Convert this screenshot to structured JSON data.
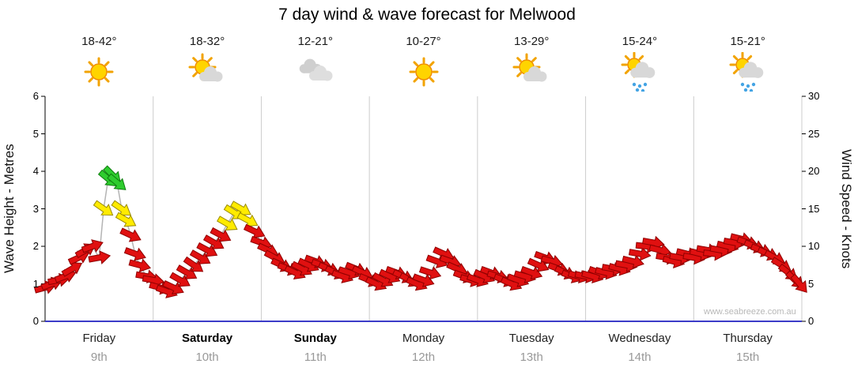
{
  "title": "7 day wind & wave forecast for Melwood",
  "watermark": "www.seabreeze.com.au",
  "axes": {
    "left_label": "Wave Height - Metres",
    "right_label": "Wind Speed - Knots"
  },
  "days": [
    {
      "name": "Friday",
      "date": "9th",
      "temp": "18-42°",
      "icon": "sunny",
      "bold": false
    },
    {
      "name": "Saturday",
      "date": "10th",
      "temp": "18-32°",
      "icon": "partly-cloudy",
      "bold": true
    },
    {
      "name": "Sunday",
      "date": "11th",
      "temp": "12-21°",
      "icon": "cloudy",
      "bold": true
    },
    {
      "name": "Monday",
      "date": "12th",
      "temp": "10-27°",
      "icon": "sunny",
      "bold": false
    },
    {
      "name": "Tuesday",
      "date": "13th",
      "temp": "13-29°",
      "icon": "partly-cloudy",
      "bold": false
    },
    {
      "name": "Wednesday",
      "date": "14th",
      "temp": "15-24°",
      "icon": "rain",
      "bold": false
    },
    {
      "name": "Thursday",
      "date": "15th",
      "temp": "15-21°",
      "icon": "rain",
      "bold": false
    }
  ],
  "chart_data": {
    "type": "scatter",
    "title": "7 day wind & wave forecast for Melwood",
    "x_axis": {
      "categories": [
        "Friday",
        "Saturday",
        "Sunday",
        "Monday",
        "Tuesday",
        "Wednesday",
        "Thursday"
      ],
      "unit": "hours",
      "range": [
        0,
        168
      ]
    },
    "left_axis": {
      "label": "Wave Height - Metres",
      "range": [
        0,
        6
      ],
      "ticks": [
        0,
        1,
        2,
        3,
        4,
        5,
        6
      ]
    },
    "right_axis": {
      "label": "Wind Speed - Knots",
      "range": [
        0,
        30
      ],
      "ticks": [
        0,
        5,
        10,
        15,
        20,
        25,
        30
      ]
    },
    "grid": "vertical-day-boundaries",
    "legend": "none",
    "arrow_colors": {
      "r": "#e01010",
      "y": "#ffeb00",
      "g": "#2ecc2e"
    },
    "arrow_stroke_colors": {
      "r": "#8f0000",
      "y": "#9a8b00",
      "g": "#0f7d0f"
    },
    "wave_line_color": "#b4b4b4",
    "axis_color_bottom": "#3c3cc8",
    "wind_points": [
      [
        0,
        4.5,
        -15,
        "r"
      ],
      [
        1.5,
        5,
        -20,
        "r"
      ],
      [
        3,
        5.5,
        -10,
        "r"
      ],
      [
        4.5,
        6,
        -20,
        "r"
      ],
      [
        6,
        7,
        -30,
        "r"
      ],
      [
        7.5,
        8.5,
        -25,
        "r"
      ],
      [
        9,
        9.5,
        -30,
        "r"
      ],
      [
        10.5,
        10,
        -20,
        "r"
      ],
      [
        12,
        8.5,
        -10,
        "r"
      ],
      [
        13,
        15,
        35,
        "y"
      ],
      [
        14,
        19,
        40,
        "g"
      ],
      [
        15,
        19.5,
        45,
        "g"
      ],
      [
        16,
        18.5,
        40,
        "g"
      ],
      [
        17,
        15,
        35,
        "y"
      ],
      [
        18,
        13.5,
        30,
        "y"
      ],
      [
        19,
        11.5,
        25,
        "r"
      ],
      [
        20,
        9,
        20,
        "r"
      ],
      [
        21,
        7.5,
        15,
        "r"
      ],
      [
        22.5,
        6,
        10,
        "r"
      ],
      [
        24,
        5.5,
        10,
        "r"
      ],
      [
        25.5,
        4.5,
        15,
        "r"
      ],
      [
        27,
        4,
        20,
        "r"
      ],
      [
        28.5,
        4.5,
        25,
        "r"
      ],
      [
        30,
        5.5,
        30,
        "r"
      ],
      [
        31.5,
        6.5,
        30,
        "r"
      ],
      [
        33,
        7.5,
        35,
        "r"
      ],
      [
        34.5,
        8.5,
        30,
        "r"
      ],
      [
        36,
        9.5,
        28,
        "r"
      ],
      [
        37.5,
        10.5,
        30,
        "r"
      ],
      [
        39,
        11.5,
        28,
        "r"
      ],
      [
        40.5,
        13,
        30,
        "y"
      ],
      [
        42,
        14.5,
        32,
        "y"
      ],
      [
        43.5,
        15,
        30,
        "y"
      ],
      [
        45,
        13.5,
        28,
        "y"
      ],
      [
        46.5,
        12,
        25,
        "r"
      ],
      [
        48,
        10.5,
        20,
        "r"
      ],
      [
        49.5,
        9.5,
        25,
        "r"
      ],
      [
        51,
        8.5,
        28,
        "r"
      ],
      [
        52.5,
        7.5,
        25,
        "r"
      ],
      [
        54,
        7,
        20,
        "r"
      ],
      [
        55.5,
        6.5,
        25,
        "r"
      ],
      [
        57,
        7,
        28,
        "r"
      ],
      [
        58.5,
        7.5,
        25,
        "r"
      ],
      [
        60,
        8,
        20,
        "r"
      ],
      [
        61.5,
        7.5,
        18,
        "r"
      ],
      [
        63,
        7,
        22,
        "r"
      ],
      [
        64.5,
        6.5,
        25,
        "r"
      ],
      [
        66,
        6,
        20,
        "r"
      ],
      [
        67.5,
        6.5,
        18,
        "r"
      ],
      [
        69,
        7,
        22,
        "r"
      ],
      [
        70.5,
        6.5,
        25,
        "r"
      ],
      [
        72,
        5.5,
        22,
        "r"
      ],
      [
        73.5,
        5,
        25,
        "r"
      ],
      [
        75,
        5.5,
        28,
        "r"
      ],
      [
        76.5,
        6,
        25,
        "r"
      ],
      [
        78,
        6.5,
        20,
        "r"
      ],
      [
        79.5,
        6,
        24,
        "r"
      ],
      [
        81,
        5.5,
        28,
        "r"
      ],
      [
        82.5,
        5,
        24,
        "r"
      ],
      [
        84,
        5.5,
        20,
        "r"
      ],
      [
        85.5,
        6.5,
        18,
        "r"
      ],
      [
        87,
        8,
        20,
        "r"
      ],
      [
        88.5,
        9,
        24,
        "r"
      ],
      [
        90,
        8,
        20,
        "r"
      ],
      [
        91.5,
        7,
        24,
        "r"
      ],
      [
        93,
        6,
        20,
        "r"
      ],
      [
        94.5,
        5.5,
        16,
        "r"
      ],
      [
        96,
        5.5,
        20,
        "r"
      ],
      [
        97.5,
        6,
        24,
        "r"
      ],
      [
        99,
        6.5,
        20,
        "r"
      ],
      [
        100.5,
        6,
        16,
        "r"
      ],
      [
        102,
        5.5,
        20,
        "r"
      ],
      [
        103.5,
        5,
        24,
        "r"
      ],
      [
        105,
        5.5,
        20,
        "r"
      ],
      [
        106.5,
        6,
        16,
        "r"
      ],
      [
        108,
        6.5,
        20,
        "r"
      ],
      [
        109.5,
        7.5,
        24,
        "r"
      ],
      [
        111,
        8.5,
        20,
        "r"
      ],
      [
        112.5,
        8,
        16,
        "r"
      ],
      [
        114,
        7,
        20,
        "r"
      ],
      [
        115.5,
        6.5,
        24,
        "r"
      ],
      [
        117,
        6,
        20,
        "r"
      ],
      [
        118.5,
        6,
        16,
        "r"
      ],
      [
        120,
        6,
        12,
        "r"
      ],
      [
        121.5,
        6,
        16,
        "r"
      ],
      [
        123,
        6.5,
        20,
        "r"
      ],
      [
        124.5,
        6.5,
        14,
        "r"
      ],
      [
        126,
        7,
        10,
        "r"
      ],
      [
        127.5,
        7,
        15,
        "r"
      ],
      [
        129,
        7.5,
        10,
        "r"
      ],
      [
        130.5,
        8,
        14,
        "r"
      ],
      [
        132,
        9,
        10,
        "r"
      ],
      [
        133.5,
        10,
        6,
        "r"
      ],
      [
        135,
        10.5,
        10,
        "r"
      ],
      [
        136.5,
        9.5,
        14,
        "r"
      ],
      [
        138,
        8.5,
        10,
        "r"
      ],
      [
        139.5,
        8,
        14,
        "r"
      ],
      [
        141,
        8.5,
        10,
        "r"
      ],
      [
        142.5,
        9,
        14,
        "r"
      ],
      [
        144,
        8.5,
        10,
        "r"
      ],
      [
        145.5,
        9,
        14,
        "r"
      ],
      [
        147,
        9.5,
        10,
        "r"
      ],
      [
        148.5,
        9,
        6,
        "r"
      ],
      [
        150,
        9.5,
        10,
        "r"
      ],
      [
        151.5,
        10,
        14,
        "r"
      ],
      [
        153,
        10.5,
        10,
        "r"
      ],
      [
        154.5,
        11,
        14,
        "r"
      ],
      [
        156,
        10.5,
        18,
        "r"
      ],
      [
        157.5,
        10,
        22,
        "r"
      ],
      [
        159,
        9.5,
        20,
        "r"
      ],
      [
        160.5,
        9,
        24,
        "r"
      ],
      [
        162,
        8.5,
        28,
        "r"
      ],
      [
        163.5,
        7.5,
        32,
        "r"
      ],
      [
        165,
        6.5,
        38,
        "r"
      ],
      [
        166.5,
        5.5,
        44,
        "r"
      ],
      [
        167.5,
        5,
        50,
        "r"
      ]
    ]
  }
}
